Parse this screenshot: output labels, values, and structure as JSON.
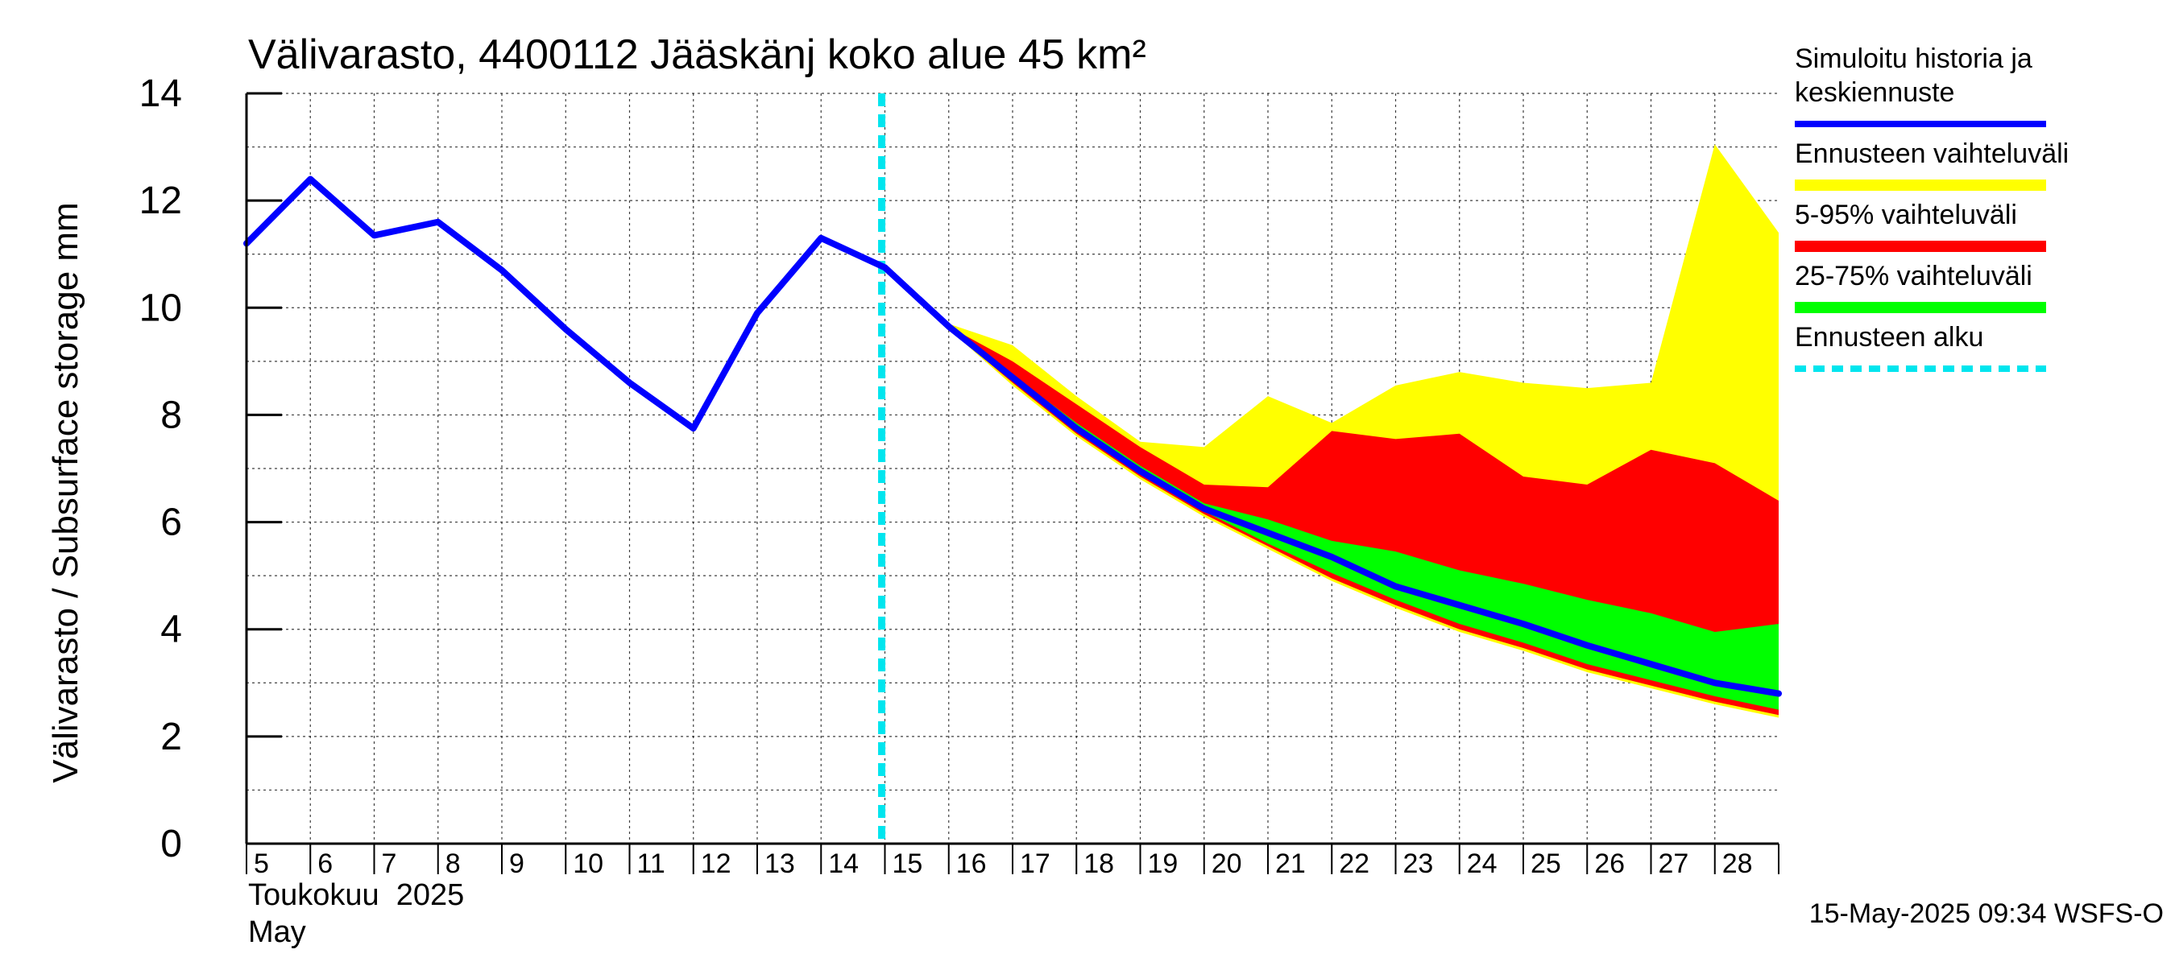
{
  "chart_data": {
    "type": "area",
    "title": "Välivarasto, 4400112 Jääskänj koko alue 45 km²",
    "ylabel": "Välivarasto / Subsurface storage  mm",
    "xlabel_fi": "Toukokuu  2025",
    "xlabel_en": "May",
    "timestamp": "15-May-2025 09:34 WSFS-O",
    "ylim": [
      0,
      14
    ],
    "yticks": [
      "0",
      "2",
      "4",
      "6",
      "8",
      "10",
      "12",
      "14"
    ],
    "x_days": [
      5,
      6,
      7,
      8,
      9,
      10,
      11,
      12,
      13,
      14,
      15,
      16,
      17,
      18,
      19,
      20,
      21,
      22,
      23,
      24,
      25,
      26,
      27,
      28
    ],
    "x_tick_labels": [
      "5",
      "6",
      "7",
      "8",
      "9",
      "10",
      "11",
      "12",
      "13",
      "14",
      "15",
      "16",
      "17",
      "18",
      "19",
      "20",
      "21",
      "22",
      "23",
      "24",
      "25",
      "26",
      "27",
      "28"
    ],
    "xlim": [
      5,
      29
    ],
    "grid": true,
    "forecast_start_day": 14.95,
    "history": {
      "name": "Simuloitu historia ja keskiennuste",
      "color": "#0000ff",
      "x": [
        5,
        6,
        7,
        8,
        9,
        10,
        11,
        12,
        13,
        14,
        15
      ],
      "y": [
        11.2,
        12.4,
        11.35,
        11.6,
        10.7,
        9.6,
        8.6,
        7.75,
        9.9,
        11.3,
        10.75
      ]
    },
    "median": {
      "name": "Simuloitu historia ja keskiennuste",
      "color": "#0000ff",
      "x": [
        15,
        16,
        17,
        18,
        19,
        20,
        21,
        22,
        23,
        24,
        25,
        26,
        27,
        28,
        29
      ],
      "y": [
        10.75,
        9.65,
        8.7,
        7.75,
        6.95,
        6.25,
        5.8,
        5.35,
        4.8,
        4.45,
        4.1,
        3.7,
        3.35,
        3.0,
        2.8
      ]
    },
    "bands": [
      {
        "name": "Ennusteen vaihteluväli",
        "color": "#ffff00",
        "x": [
          16,
          17,
          18,
          19,
          20,
          21,
          22,
          23,
          24,
          25,
          26,
          27,
          28,
          29
        ],
        "upper": [
          9.7,
          9.3,
          8.35,
          7.5,
          7.4,
          8.35,
          7.85,
          8.55,
          8.8,
          8.6,
          8.5,
          8.6,
          13.05,
          11.4
        ],
        "lower": [
          9.6,
          8.55,
          7.6,
          6.8,
          6.1,
          5.5,
          4.9,
          4.4,
          3.95,
          3.6,
          3.2,
          2.9,
          2.6,
          2.35
        ]
      },
      {
        "name": "5-95% vaihteluväli",
        "color": "#ff0000",
        "x": [
          16,
          17,
          18,
          19,
          20,
          21,
          22,
          23,
          24,
          25,
          26,
          27,
          28,
          29
        ],
        "upper": [
          9.65,
          9.0,
          8.2,
          7.4,
          6.7,
          6.65,
          7.7,
          7.55,
          7.65,
          6.85,
          6.7,
          7.35,
          7.1,
          6.4
        ],
        "lower": [
          9.6,
          8.6,
          7.65,
          6.85,
          6.15,
          5.55,
          4.95,
          4.45,
          4.0,
          3.65,
          3.25,
          2.95,
          2.65,
          2.4
        ]
      },
      {
        "name": "25-75% vaihteluväli",
        "color": "#00ff00",
        "x": [
          16,
          17,
          18,
          19,
          20,
          21,
          22,
          23,
          24,
          25,
          26,
          27,
          28,
          29
        ],
        "upper": [
          9.65,
          8.75,
          7.85,
          7.05,
          6.35,
          6.05,
          5.65,
          5.45,
          5.1,
          4.85,
          4.55,
          4.3,
          3.95,
          4.1
        ],
        "lower": [
          9.6,
          8.65,
          7.7,
          6.9,
          6.2,
          5.6,
          5.05,
          4.55,
          4.1,
          3.75,
          3.35,
          3.05,
          2.75,
          2.5
        ]
      }
    ],
    "legend": [
      {
        "label_lines": [
          "Simuloitu historia ja",
          "keskiennuste"
        ],
        "color": "#0000ff",
        "style": "line"
      },
      {
        "label_lines": [
          "Ennusteen vaihteluväli"
        ],
        "color": "#ffff00",
        "style": "band"
      },
      {
        "label_lines": [
          "5-95% vaihteluväli"
        ],
        "color": "#ff0000",
        "style": "band"
      },
      {
        "label_lines": [
          "25-75% vaihteluväli"
        ],
        "color": "#00ff00",
        "style": "band"
      },
      {
        "label_lines": [
          "Ennusteen alku"
        ],
        "color": "#00e5ee",
        "style": "dashed"
      }
    ]
  }
}
